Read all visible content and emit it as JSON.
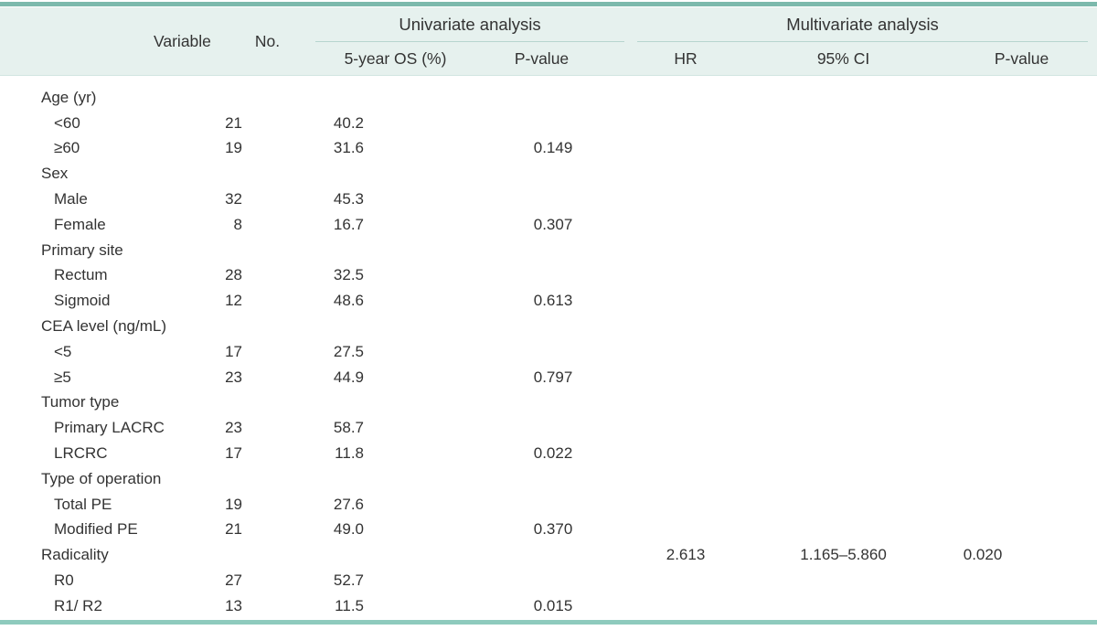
{
  "colors": {
    "rule-top": "#7cb9ac",
    "rule-bottom": "#8ecabd",
    "header-bg": "#e6f1ee",
    "spanner-rule": "#b7d5cf",
    "header-edge": "#d2e6e1",
    "text": "#333333"
  },
  "table": {
    "headers": {
      "variable": "Variable",
      "no": "No.",
      "univariate_group": "Univariate analysis",
      "multivariate_group": "Multivariate analysis",
      "univariate_os": "5-year OS (%)",
      "univariate_p": "P-value",
      "multivariate_hr": "HR",
      "multivariate_ci": "95% CI",
      "multivariate_p": "P-value"
    },
    "rows": [
      {
        "indent": 0,
        "label": "Age (yr)",
        "no": "",
        "os": "",
        "p_uni": "",
        "hr": "",
        "ci": "",
        "p_multi": ""
      },
      {
        "indent": 1,
        "label": "<60",
        "no": "21",
        "os": "40.2",
        "p_uni": "",
        "hr": "",
        "ci": "",
        "p_multi": ""
      },
      {
        "indent": 1,
        "label": "≥60",
        "no": "19",
        "os": "31.6",
        "p_uni": "0.149",
        "hr": "",
        "ci": "",
        "p_multi": ""
      },
      {
        "indent": 0,
        "label": "Sex",
        "no": "",
        "os": "",
        "p_uni": "",
        "hr": "",
        "ci": "",
        "p_multi": ""
      },
      {
        "indent": 1,
        "label": "Male",
        "no": "32",
        "os": "45.3",
        "p_uni": "",
        "hr": "",
        "ci": "",
        "p_multi": ""
      },
      {
        "indent": 1,
        "label": "Female",
        "no": "8",
        "os": "16.7",
        "p_uni": "0.307",
        "hr": "",
        "ci": "",
        "p_multi": ""
      },
      {
        "indent": 0,
        "label": "Primary site",
        "no": "",
        "os": "",
        "p_uni": "",
        "hr": "",
        "ci": "",
        "p_multi": ""
      },
      {
        "indent": 1,
        "label": "Rectum",
        "no": "28",
        "os": "32.5",
        "p_uni": "",
        "hr": "",
        "ci": "",
        "p_multi": ""
      },
      {
        "indent": 1,
        "label": "Sigmoid",
        "no": "12",
        "os": "48.6",
        "p_uni": "0.613",
        "hr": "",
        "ci": "",
        "p_multi": ""
      },
      {
        "indent": 0,
        "label": "CEA level (ng/mL)",
        "no": "",
        "os": "",
        "p_uni": "",
        "hr": "",
        "ci": "",
        "p_multi": ""
      },
      {
        "indent": 1,
        "label": "<5",
        "no": "17",
        "os": "27.5",
        "p_uni": "",
        "hr": "",
        "ci": "",
        "p_multi": ""
      },
      {
        "indent": 1,
        "label": "≥5",
        "no": "23",
        "os": "44.9",
        "p_uni": "0.797",
        "hr": "",
        "ci": "",
        "p_multi": ""
      },
      {
        "indent": 0,
        "label": "Tumor type",
        "no": "",
        "os": "",
        "p_uni": "",
        "hr": "",
        "ci": "",
        "p_multi": ""
      },
      {
        "indent": 1,
        "label": "Primary LACRC",
        "no": "23",
        "os": "58.7",
        "p_uni": "",
        "hr": "",
        "ci": "",
        "p_multi": ""
      },
      {
        "indent": 1,
        "label": "LRCRC",
        "no": "17",
        "os": "11.8",
        "p_uni": "0.022",
        "hr": "",
        "ci": "",
        "p_multi": ""
      },
      {
        "indent": 0,
        "label": "Type of operation",
        "no": "",
        "os": "",
        "p_uni": "",
        "hr": "",
        "ci": "",
        "p_multi": ""
      },
      {
        "indent": 1,
        "label": "Total PE",
        "no": "19",
        "os": "27.6",
        "p_uni": "",
        "hr": "",
        "ci": "",
        "p_multi": ""
      },
      {
        "indent": 1,
        "label": "Modified PE",
        "no": "21",
        "os": "49.0",
        "p_uni": "0.370",
        "hr": "",
        "ci": "",
        "p_multi": ""
      },
      {
        "indent": 0,
        "label": "Radicality",
        "no": "",
        "os": "",
        "p_uni": "",
        "hr": "2.613",
        "ci": "1.165–5.860",
        "p_multi": "0.020"
      },
      {
        "indent": 1,
        "label": "R0",
        "no": "27",
        "os": "52.7",
        "p_uni": "",
        "hr": "",
        "ci": "",
        "p_multi": ""
      },
      {
        "indent": 1,
        "label": "R1/ R2",
        "no": "13",
        "os": "11.5",
        "p_uni": "0.015",
        "hr": "",
        "ci": "",
        "p_multi": ""
      }
    ]
  }
}
